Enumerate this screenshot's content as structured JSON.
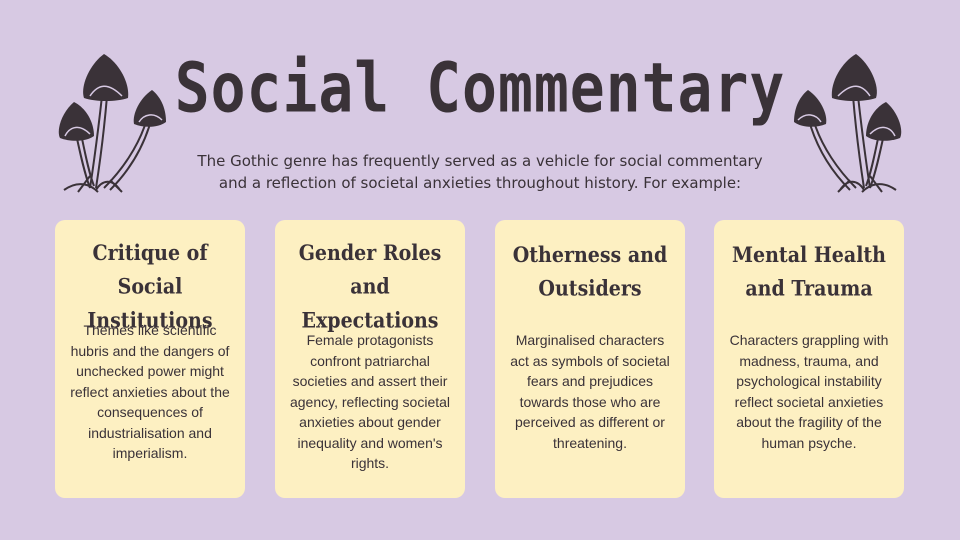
{
  "slide": {
    "title": "Social Commentary",
    "intro_line1": "The Gothic genre has frequently served as a vehicle for social commentary",
    "intro_line2": "and a reflection of societal anxieties throughout history. For example:"
  },
  "decor": {
    "left_icon": "mushrooms-illustration",
    "right_icon": "mushrooms-illustration"
  },
  "cards": [
    {
      "title": "Critique of Social Institutions",
      "body": "Themes like scientific hubris and the dangers of unchecked power might reflect anxieties about the consequences of industrialisation and imperialism."
    },
    {
      "title": "Gender Roles and Expectations",
      "body": "Female protagonists confront patriarchal societies and assert their agency, reflecting societal anxieties about gender inequality and women's rights."
    },
    {
      "title": "Otherness and Outsiders",
      "body": "Marginalised characters act as symbols of societal fears and prejudices towards those who are perceived as different or threatening."
    },
    {
      "title": "Mental Health and Trauma",
      "body": "Characters grappling with madness, trauma, and psychological instability reflect societal anxieties about the fragility of the human psyche."
    }
  ],
  "colors": {
    "background": "#d7c9e3",
    "card": "#fdf0c2",
    "text": "#3a3238"
  }
}
